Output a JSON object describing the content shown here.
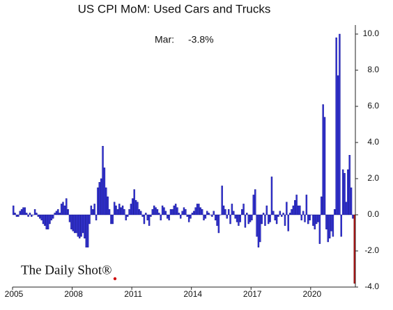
{
  "chart_data": {
    "type": "bar",
    "title": "US CPI MoM: Used Cars and Trucks",
    "annotation": [
      "Mar:",
      "-3.8%"
    ],
    "source": "The Daily Shot®",
    "categories": [
      "2005",
      null,
      null,
      null,
      null,
      null,
      null,
      null,
      null,
      null,
      null,
      null,
      null,
      null,
      null,
      null,
      null,
      null,
      null,
      null,
      null,
      null,
      null,
      null,
      null,
      null,
      null,
      null,
      null,
      null,
      null,
      null,
      null,
      null,
      null,
      null,
      "2008",
      null,
      null,
      null,
      null,
      null,
      null,
      null,
      null,
      null,
      null,
      null,
      null,
      null,
      null,
      null,
      null,
      null,
      null,
      null,
      null,
      null,
      null,
      null,
      null,
      null,
      null,
      null,
      null,
      null,
      null,
      null,
      null,
      null,
      null,
      null,
      "2011",
      null,
      null,
      null,
      null,
      null,
      null,
      null,
      null,
      null,
      null,
      null,
      null,
      null,
      null,
      null,
      null,
      null,
      null,
      null,
      null,
      null,
      null,
      null,
      null,
      null,
      null,
      null,
      null,
      null,
      null,
      null,
      null,
      null,
      null,
      null,
      "2014",
      null,
      null,
      null,
      null,
      null,
      null,
      null,
      null,
      null,
      null,
      null,
      null,
      null,
      null,
      null,
      null,
      null,
      null,
      null,
      null,
      null,
      null,
      null,
      null,
      null,
      null,
      null,
      null,
      null,
      null,
      null,
      null,
      null,
      null,
      null,
      "2017",
      null,
      null,
      null,
      null,
      null,
      null,
      null,
      null,
      null,
      null,
      null,
      null,
      null,
      null,
      null,
      null,
      null,
      null,
      null,
      null,
      null,
      null,
      null,
      null,
      null,
      null,
      null,
      null,
      null,
      null,
      null,
      null,
      null,
      null,
      null,
      "2020",
      null,
      null,
      null,
      null,
      null,
      null,
      null,
      null,
      null,
      null,
      null,
      null,
      null,
      null,
      null,
      null,
      null,
      null,
      null,
      null,
      null,
      null,
      null,
      null,
      null,
      null
    ],
    "values": [
      0.5,
      0.1,
      -0.1,
      -0.1,
      0.2,
      0.3,
      0.4,
      0.4,
      0.1,
      -0.1,
      0.1,
      -0.1,
      0.0,
      0.3,
      0.1,
      -0.1,
      -0.2,
      -0.3,
      -0.5,
      -0.6,
      -0.8,
      -0.8,
      -0.5,
      -0.3,
      -0.2,
      0.1,
      0.2,
      0.3,
      0.1,
      0.6,
      0.7,
      0.5,
      0.9,
      0.3,
      -0.4,
      -0.8,
      -0.9,
      -1.0,
      -1.0,
      -1.2,
      -1.3,
      -1.2,
      -1.0,
      -1.3,
      -1.8,
      -1.8,
      -0.5,
      0.5,
      0.3,
      0.6,
      -0.3,
      1.5,
      1.8,
      2.0,
      3.8,
      2.6,
      1.5,
      1.0,
      0.3,
      -0.5,
      -0.5,
      0.7,
      0.5,
      0.3,
      0.6,
      0.4,
      0.5,
      0.3,
      -0.3,
      -0.1,
      0.3,
      0.6,
      0.9,
      1.4,
      0.8,
      0.7,
      0.3,
      0.2,
      -0.1,
      -0.5,
      0.1,
      -0.3,
      -0.6,
      -0.1,
      0.3,
      0.5,
      0.4,
      0.3,
      0.1,
      -0.3,
      0.5,
      0.4,
      0.2,
      -0.2,
      -0.3,
      0.3,
      0.3,
      0.5,
      0.6,
      0.4,
      0.1,
      -0.2,
      0.2,
      0.4,
      0.3,
      -0.1,
      -0.4,
      -0.2,
      0.1,
      0.2,
      0.4,
      0.6,
      0.6,
      0.4,
      0.3,
      -0.3,
      -0.2,
      0.2,
      0.1,
      0.0,
      -0.1,
      0.2,
      -0.3,
      -0.6,
      -1.0,
      0.0,
      1.6,
      0.5,
      0.3,
      -0.2,
      0.3,
      -0.5,
      0.6,
      0.2,
      -0.2,
      -0.4,
      -0.6,
      -0.4,
      0.3,
      0.6,
      -0.7,
      0.1,
      -0.5,
      -0.4,
      -0.3,
      1.1,
      1.4,
      -1.2,
      -1.8,
      -1.5,
      -0.5,
      0.1,
      -0.6,
      0.5,
      -0.5,
      -0.4,
      2.1,
      0.2,
      -0.3,
      -0.5,
      -0.1,
      0.2,
      -0.1,
      0.1,
      -0.6,
      0.7,
      -0.9,
      0.1,
      0.3,
      0.5,
      0.8,
      1.1,
      0.5,
      0.5,
      -0.3,
      0.2,
      -0.4,
      1.1,
      -0.5,
      -0.3,
      0.0,
      -0.6,
      -0.8,
      -0.5,
      -0.4,
      -1.6,
      1.0,
      6.1,
      5.4,
      -0.8,
      -1.5,
      -1.3,
      -0.9,
      -1.2,
      0.3,
      9.8,
      7.7,
      10.0,
      -1.2,
      2.5,
      2.3,
      0.7,
      2.5,
      3.3,
      1.5,
      -0.2,
      -3.8
    ],
    "color": "#3535d8",
    "last_color": "#b01818",
    "ylim": [
      -4,
      10.5
    ],
    "yticks": [
      {
        "value": -4,
        "label": "-4.0"
      },
      {
        "value": -2,
        "label": "-2.0"
      },
      {
        "value": 0,
        "label": "0.0"
      },
      {
        "value": 2,
        "label": "2.0"
      },
      {
        "value": 4,
        "label": "4.0"
      },
      {
        "value": 6,
        "label": "6.0"
      },
      {
        "value": 8,
        "label": "8.0"
      },
      {
        "value": 10,
        "label": "10.0"
      }
    ],
    "grid": false
  }
}
